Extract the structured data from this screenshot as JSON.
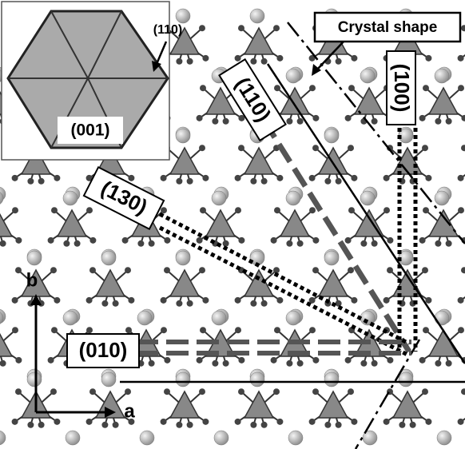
{
  "labels": {
    "crystal_shape": "Crystal shape",
    "face_110": "(110)",
    "face_100": "(100)",
    "face_130": "(130)",
    "face_010": "(010)"
  },
  "inset": {
    "face_110": "(110)",
    "face_001": "(001)"
  },
  "axes": {
    "b": "b",
    "a": "a"
  }
}
